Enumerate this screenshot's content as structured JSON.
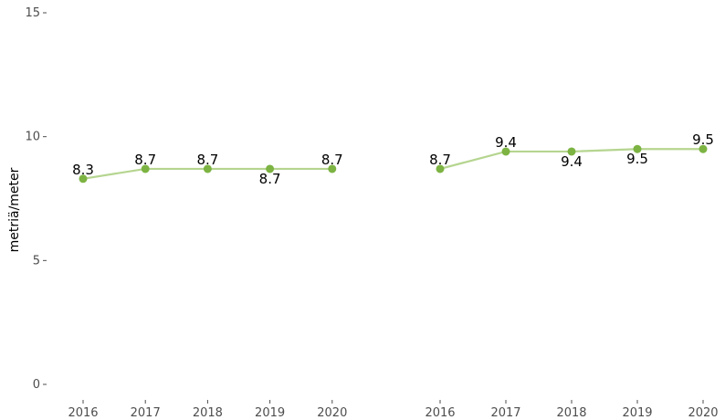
{
  "chart_data": {
    "type": "line",
    "ylabel": "metriä/meter",
    "ylim": [
      0,
      15
    ],
    "yticks": [
      0,
      5,
      10,
      15
    ],
    "grid": false,
    "line_color": "#b5d58f",
    "point_color": "#7cb342",
    "panels": [
      {
        "x": [
          "2016",
          "2017",
          "2018",
          "2019",
          "2020"
        ],
        "values": [
          8.3,
          8.7,
          8.7,
          8.7,
          8.7
        ],
        "data_labels": [
          "8.3",
          "8.7",
          "8.7",
          "8.7",
          "8.7"
        ],
        "label_positions": [
          "above",
          "above",
          "above",
          "below",
          "above"
        ]
      },
      {
        "x": [
          "2016",
          "2017",
          "2018",
          "2019",
          "2020"
        ],
        "values": [
          8.7,
          9.4,
          9.4,
          9.5,
          9.5
        ],
        "data_labels": [
          "8.7",
          "9.4",
          "9.4",
          "9.5",
          "9.5"
        ],
        "label_positions": [
          "above",
          "above",
          "below",
          "below",
          "above"
        ]
      }
    ]
  }
}
